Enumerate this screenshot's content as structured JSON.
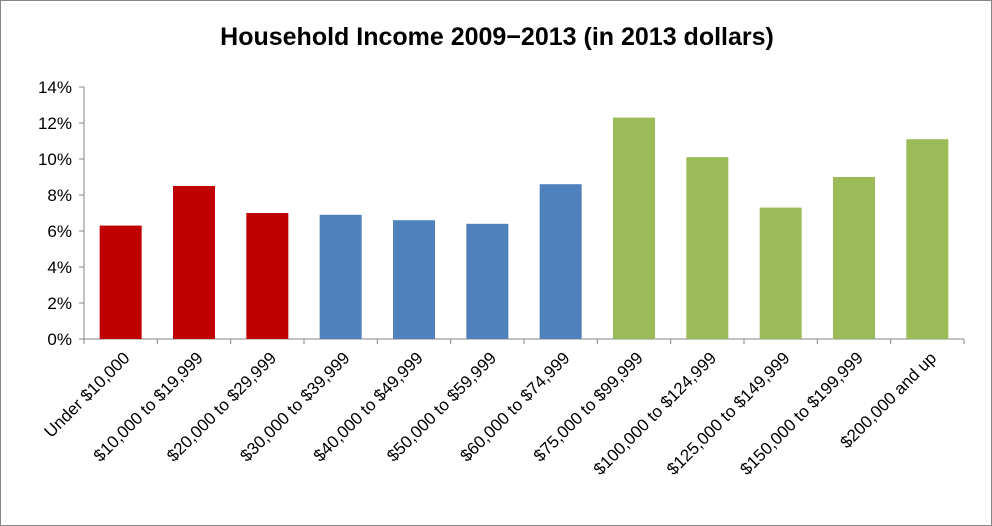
{
  "chart_data": {
    "type": "bar",
    "title": "Household Income 2009−2013 (in 2013 dollars)",
    "xlabel": "",
    "ylabel": "",
    "ylim": [
      0,
      14
    ],
    "yticks": [
      "0%",
      "2%",
      "4%",
      "6%",
      "8%",
      "10%",
      "12%",
      "14%"
    ],
    "grid": false,
    "legend": "none",
    "categories": [
      "Under $10,000",
      "$10,000 to $19,999",
      "$20,000 to $29,999",
      "$30,000 to $39,999",
      "$40,000 to $49,999",
      "$50,000 to $59,999",
      "$60,000 to $74,999",
      "$75,000 to $99,999",
      "$100,000 to $124,999",
      "$125,000 to $149,999",
      "$150,000 to $199,999",
      "$200,000 and up"
    ],
    "values": [
      6.3,
      8.5,
      7.0,
      6.9,
      6.6,
      6.4,
      8.6,
      12.3,
      10.1,
      7.3,
      9.0,
      11.1
    ],
    "bar_colors": [
      "#c00000",
      "#c00000",
      "#c00000",
      "#4f81bd",
      "#4f81bd",
      "#4f81bd",
      "#4f81bd",
      "#9bbb59",
      "#9bbb59",
      "#9bbb59",
      "#9bbb59",
      "#9bbb59"
    ],
    "axis_color": "#868686"
  }
}
